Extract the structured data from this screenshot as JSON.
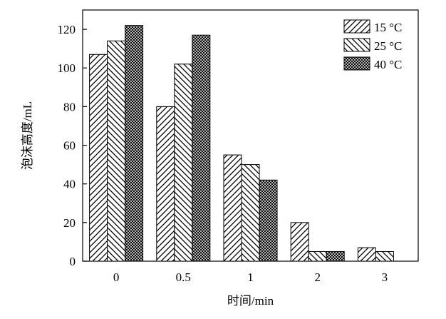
{
  "chart_data": {
    "type": "bar",
    "xlabel": "时间/min",
    "ylabel": "泡沫高度/mL",
    "categories": [
      "0",
      "0.5",
      "1",
      "2",
      "3"
    ],
    "ylim": [
      0,
      130
    ],
    "yticks": [
      0,
      20,
      40,
      60,
      80,
      100,
      120
    ],
    "grid": false,
    "legend_position": "top-right",
    "series": [
      {
        "name": "15 °C",
        "pattern": "diagonal-forward",
        "values": [
          107,
          80,
          55,
          20,
          7
        ]
      },
      {
        "name": "25 °C",
        "pattern": "diagonal-backward",
        "values": [
          114,
          102,
          50,
          5,
          5
        ]
      },
      {
        "name": "40 °C",
        "pattern": "crosshatch-dense",
        "values": [
          122,
          117,
          42,
          5,
          null
        ]
      }
    ]
  }
}
